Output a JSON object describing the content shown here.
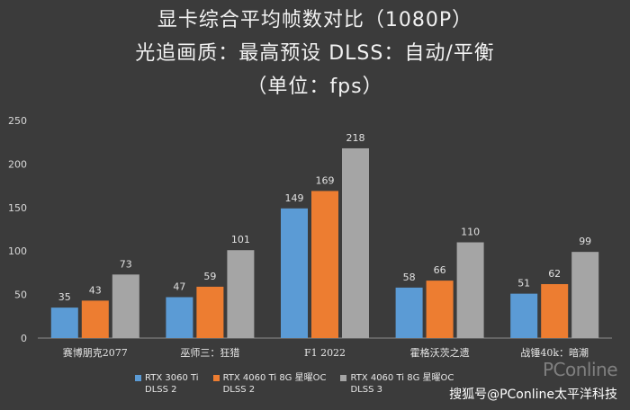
{
  "chart_data": {
    "type": "bar",
    "title_lines": [
      "显卡综合平均帧数对比（1080P）",
      "光追画质：最高预设    DLSS：自动/平衡",
      "（单位：fps）"
    ],
    "categories": [
      "赛博朋克2077",
      "巫师三：狂猎",
      "F1 2022",
      "霍格沃茨之遗",
      "战锤40k：暗潮"
    ],
    "series": [
      {
        "name": "RTX 3060 Ti",
        "sub": "DLSS 2",
        "color": "#5b9bd5",
        "values": [
          35,
          47,
          149,
          58,
          51
        ]
      },
      {
        "name": "RTX 4060 Ti 8G 星曜OC",
        "sub": "DLSS 2",
        "color": "#ed7d31",
        "values": [
          43,
          59,
          169,
          66,
          62
        ]
      },
      {
        "name": "RTX 4060 Ti 8G 星曜OC",
        "sub": "DLSS 3",
        "color": "#a5a5a5",
        "values": [
          73,
          101,
          218,
          110,
          99
        ]
      }
    ],
    "yticks": [
      0,
      50,
      100,
      150,
      200,
      250
    ],
    "ylim": [
      0,
      250
    ],
    "xlabel": "",
    "ylabel": "",
    "grid": false,
    "legend_position": "bottom"
  },
  "watermark": {
    "logo": "PConline",
    "text": "搜狐号@PConline太平洋科技"
  }
}
